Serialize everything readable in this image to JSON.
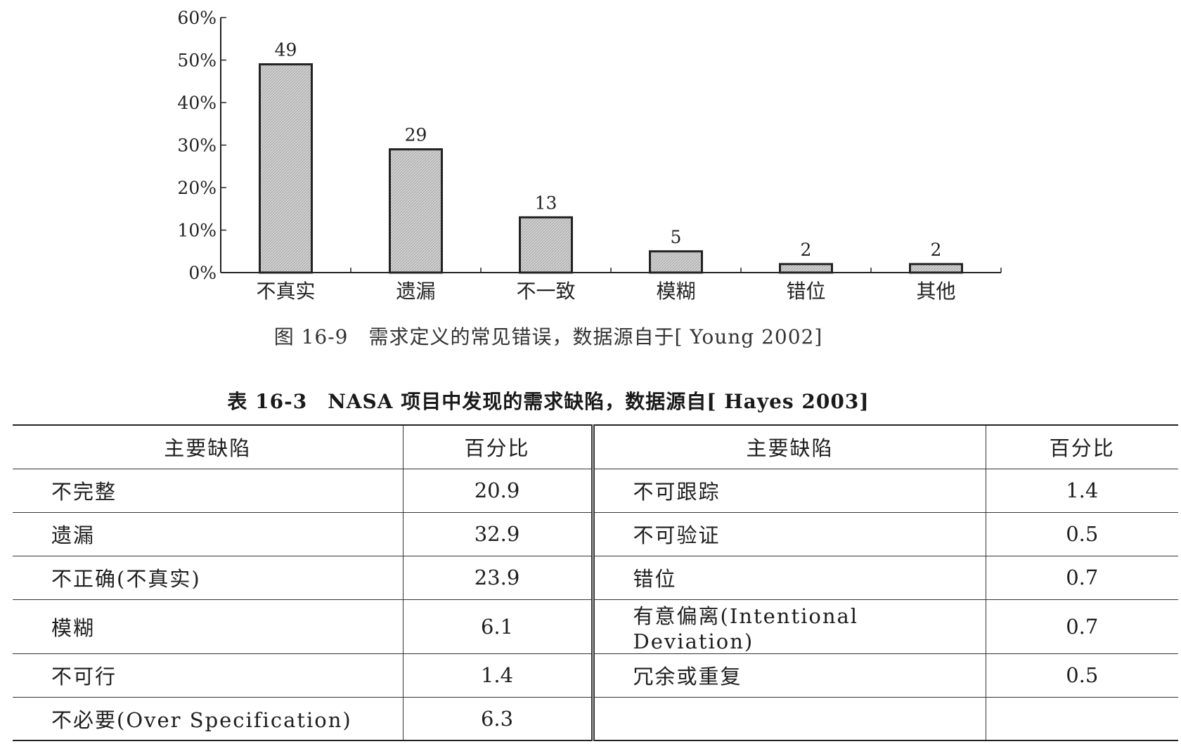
{
  "chart_data": {
    "type": "bar",
    "categories": [
      "不真实",
      "遗漏",
      "不一致",
      "模糊",
      "错位",
      "其他"
    ],
    "values": [
      49,
      29,
      13,
      5,
      2,
      2
    ],
    "value_labels": [
      "49",
      "29",
      "13",
      "5",
      "2",
      "2"
    ],
    "y_ticks": [
      "0%",
      "10%",
      "20%",
      "30%",
      "40%",
      "50%",
      "60%"
    ],
    "ylim": [
      0,
      60
    ],
    "y_unit": "%",
    "grid": false,
    "bar_fill": "#d2d2d2",
    "bar_stroke": "#222222",
    "title": "图 16-9　需求定义的常见错误，数据源自于[ Young 2002]"
  },
  "table": {
    "title": "表 16-3　NASA 项目中发现的需求缺陷，数据源自[ Hayes 2003]",
    "headers": [
      "主要缺陷",
      "百分比",
      "主要缺陷",
      "百分比"
    ],
    "rows": [
      [
        "不完整",
        "20.9",
        "不可跟踪",
        "1.4"
      ],
      [
        "遗漏",
        "32.9",
        "不可验证",
        "0.5"
      ],
      [
        "不正确(不真实)",
        "23.9",
        "错位",
        "0.7"
      ],
      [
        "模糊",
        "6.1",
        "有意偏离(Intentional Deviation)",
        "0.7"
      ],
      [
        "不可行",
        "1.4",
        "冗余或重复",
        "0.5"
      ],
      [
        "不必要(Over Specification)",
        "6.3",
        "",
        ""
      ]
    ]
  }
}
